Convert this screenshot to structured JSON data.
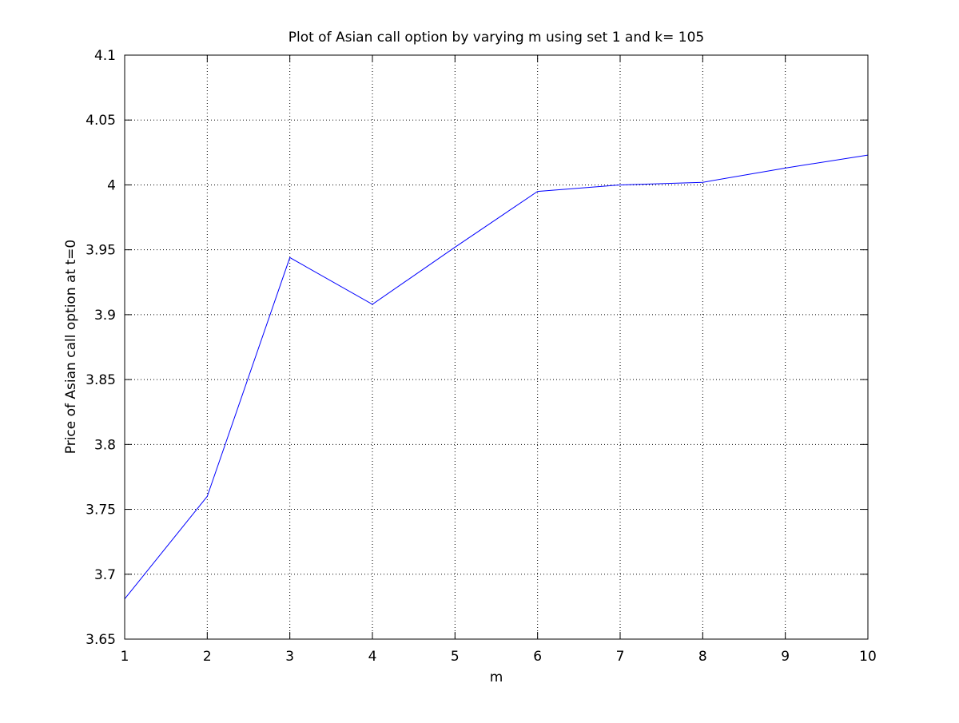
{
  "chart_data": {
    "type": "line",
    "title": "Plot of Asian call option by varying m using set 1 and k= 105",
    "xlabel": "m",
    "ylabel": "Price of Asian call option at t=0",
    "xlim": [
      1,
      10
    ],
    "ylim": [
      3.65,
      4.1
    ],
    "grid": true,
    "x_ticks": [
      "1",
      "2",
      "3",
      "4",
      "5",
      "6",
      "7",
      "8",
      "9",
      "10"
    ],
    "y_ticks": [
      "3.65",
      "3.7",
      "3.75",
      "3.8",
      "3.85",
      "3.9",
      "3.95",
      "4",
      "4.05",
      "4.1"
    ],
    "series": [
      {
        "color": "#0000ff",
        "x": [
          1,
          2,
          3,
          4,
          5,
          6,
          7,
          8,
          9,
          10
        ],
        "y": [
          3.681,
          3.76,
          3.944,
          3.908,
          3.952,
          3.995,
          4.0,
          4.002,
          4.013,
          4.023
        ]
      }
    ]
  }
}
